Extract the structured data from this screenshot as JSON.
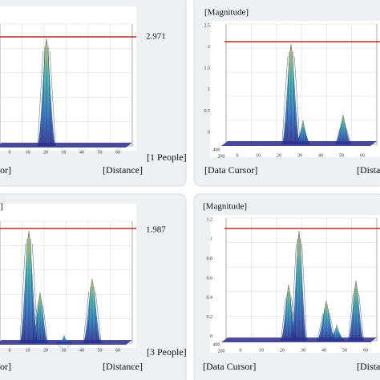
{
  "panels": [
    {
      "threshold_label": 2.971,
      "people_label": "[1 People]",
      "cursor_label": "or]",
      "distance_label": "[Distance]",
      "x_ticks": [
        0,
        10,
        20,
        30,
        40,
        50,
        60
      ]
    },
    {
      "title": "[Magnitude]",
      "y_ticks": [
        2.5,
        2,
        1.5,
        1,
        0.5,
        0
      ],
      "depth_ticks": [
        400,
        200
      ],
      "x_ticks": [
        0,
        10,
        20,
        30,
        40,
        50,
        60
      ],
      "cursor_label": "[Data Cursor]",
      "distance_label": "[Dista"
    },
    {
      "title": "]",
      "threshold_label": 1.987,
      "people_label": "[3 People]",
      "cursor_label": "or]",
      "distance_label": "[Distance]",
      "x_ticks": [
        0,
        10,
        20,
        30,
        40,
        50,
        60
      ]
    },
    {
      "title": "[Magnitude]",
      "y_ticks": [
        1.2,
        1,
        0.8,
        0.6,
        0.4,
        0.2,
        0
      ],
      "depth_ticks": [
        400,
        200
      ],
      "x_ticks": [
        0,
        10,
        20,
        30,
        40,
        50,
        60
      ],
      "cursor_label": "[Data Cursor]",
      "distance_label": "[Dista"
    }
  ]
}
